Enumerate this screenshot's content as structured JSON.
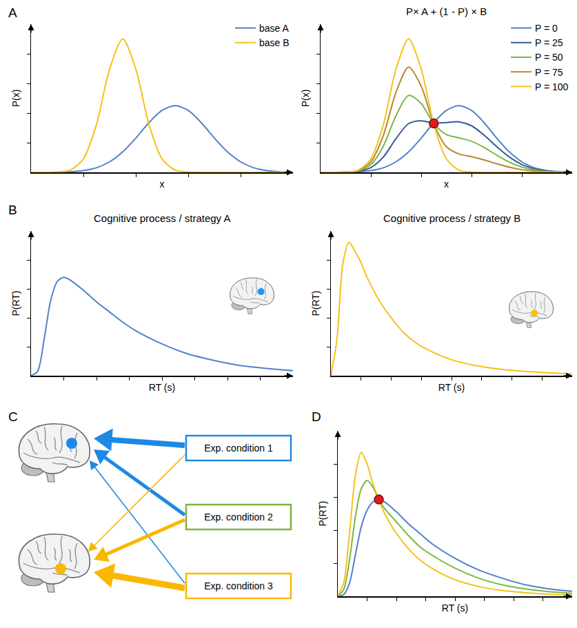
{
  "chart_data": [
    {
      "type": "line",
      "panel": "A",
      "x_label": "x",
      "y_label": "P(x)",
      "xlim": [
        0,
        10
      ],
      "ylim": [
        0,
        10
      ],
      "xticks": [
        2,
        4,
        6,
        8
      ],
      "yticks": [
        2,
        4,
        6,
        8
      ],
      "tick_labels": false,
      "grid": false,
      "legend": "top right",
      "x": [
        0,
        0.5,
        1,
        1.5,
        2,
        2.5,
        3,
        3.5,
        4,
        4.5,
        5,
        5.5,
        6,
        6.5,
        7,
        7.5,
        8,
        8.5,
        9,
        9.5,
        10
      ],
      "series": [
        {
          "name": "base A",
          "color": "#4f81c7",
          "values": [
            0,
            0,
            0.01,
            0.04,
            0.12,
            0.31,
            0.71,
            1.38,
            2.31,
            3.35,
            4.18,
            4.5,
            4.18,
            3.35,
            2.31,
            1.38,
            0.71,
            0.31,
            0.12,
            0.04,
            0.01
          ]
        },
        {
          "name": "base B",
          "color": "#f5c11a",
          "values": [
            0,
            0,
            0.02,
            0.15,
            0.91,
            3.24,
            6.97,
            9,
            6.97,
            3.24,
            0.91,
            0.15,
            0.02,
            0,
            0,
            0,
            0,
            0,
            0,
            0,
            0
          ]
        }
      ]
    },
    {
      "type": "line",
      "title": "P× A + (1 - P) × B",
      "x_label": "x",
      "y_label": "P(x)",
      "xlim": [
        0,
        10
      ],
      "ylim": [
        0,
        10
      ],
      "xticks": [
        2,
        4,
        6,
        8
      ],
      "yticks": [
        2,
        4,
        6,
        8
      ],
      "tick_labels": false,
      "grid": false,
      "legend": "top right",
      "x": [
        0,
        0.5,
        1,
        1.5,
        2,
        2.5,
        3,
        3.5,
        4,
        4.5,
        5,
        5.5,
        6,
        6.5,
        7,
        7.5,
        8,
        8.5,
        9,
        9.5,
        10
      ],
      "series": [
        {
          "name": "P = 0",
          "color": "#4f81c7",
          "values": [
            0,
            0,
            0.01,
            0.04,
            0.12,
            0.31,
            0.71,
            1.38,
            2.31,
            3.35,
            4.18,
            4.5,
            4.18,
            3.35,
            2.31,
            1.38,
            0.71,
            0.31,
            0.12,
            0.04,
            0.01
          ]
        },
        {
          "name": "P = 25",
          "color": "#34599e",
          "values": [
            0,
            0,
            0.01,
            0.07,
            0.32,
            1.04,
            2.28,
            3.29,
            3.48,
            3.32,
            3.36,
            3.41,
            3.14,
            2.51,
            1.73,
            1.04,
            0.53,
            0.23,
            0.09,
            0.03,
            0.01
          ]
        },
        {
          "name": "P = 50",
          "color": "#7bb841",
          "values": [
            0,
            0,
            0.02,
            0.1,
            0.52,
            1.78,
            3.84,
            5.19,
            4.64,
            3.3,
            2.55,
            2.33,
            2.1,
            1.68,
            1.16,
            0.69,
            0.36,
            0.16,
            0.06,
            0.02,
            0.01
          ]
        },
        {
          "name": "P = 75",
          "color": "#b8862b",
          "values": [
            0,
            0,
            0.02,
            0.12,
            0.71,
            2.51,
            5.41,
            7.1,
            5.81,
            3.27,
            1.73,
            1.24,
            1.06,
            0.84,
            0.58,
            0.35,
            0.18,
            0.08,
            0.03,
            0.01,
            0
          ]
        },
        {
          "name": "P = 100",
          "color": "#f5c11a",
          "values": [
            0,
            0,
            0.02,
            0.15,
            0.91,
            3.24,
            6.97,
            9,
            6.97,
            3.24,
            0.91,
            0.15,
            0.02,
            0,
            0,
            0,
            0,
            0,
            0,
            0,
            0
          ]
        }
      ],
      "point": {
        "x": 4.5,
        "y": 3.3,
        "color": "#e41a1c"
      }
    },
    {
      "type": "line",
      "panel": "B",
      "title": "Cognitive process / strategy A",
      "x_label": "RT (s)",
      "y_label": "P(RT)",
      "xlim": [
        0,
        10
      ],
      "ylim": [
        0,
        10
      ],
      "xticks": [
        1.25,
        2.5,
        3.75,
        5,
        6.25,
        7.5,
        8.75
      ],
      "yticks": [
        2,
        4,
        6,
        8
      ],
      "tick_labels": false,
      "grid": false,
      "x": [
        0,
        0.25,
        0.5,
        0.75,
        1,
        1.25,
        1.5,
        2,
        2.5,
        3,
        3.5,
        4,
        5,
        6,
        7,
        8,
        9,
        10
      ],
      "series": [
        {
          "color": "#4f81c7",
          "values": [
            0,
            0.3,
            2.5,
            5.2,
            6.5,
            6.8,
            6.6,
            5.9,
            5.1,
            4.4,
            3.7,
            3.1,
            2.2,
            1.5,
            1.05,
            0.7,
            0.5,
            0.35
          ]
        }
      ]
    },
    {
      "type": "line",
      "title": "Cognitive process / strategy B",
      "x_label": "RT (s)",
      "y_label": "P(RT)",
      "xlim": [
        0,
        10
      ],
      "ylim": [
        0,
        10
      ],
      "xticks": [
        1.25,
        2.5,
        3.75,
        5,
        6.25,
        7.5,
        8.75
      ],
      "yticks": [
        2,
        4,
        6,
        8
      ],
      "tick_labels": false,
      "grid": false,
      "x": [
        0,
        0.25,
        0.5,
        0.75,
        1,
        1.25,
        1.5,
        2,
        2.5,
        3,
        3.5,
        4,
        5,
        6,
        7,
        8,
        9,
        10
      ],
      "series": [
        {
          "color": "#f5c11a",
          "values": [
            0,
            2.5,
            7.8,
            9.2,
            8.6,
            7.8,
            6.8,
            5.2,
            4.0,
            3.0,
            2.3,
            1.8,
            1.1,
            0.7,
            0.45,
            0.3,
            0.2,
            0.12
          ]
        }
      ]
    },
    {
      "type": "line",
      "panel": "D",
      "x_label": "RT (s)",
      "y_label": "P(RT)",
      "xlim": [
        0,
        10
      ],
      "ylim": [
        0,
        10
      ],
      "xticks": [
        1.25,
        2.5,
        3.75,
        5,
        6.25,
        7.5,
        8.75
      ],
      "yticks": [
        2,
        4,
        6,
        8
      ],
      "tick_labels": false,
      "grid": false,
      "x": [
        0,
        0.25,
        0.5,
        0.75,
        1,
        1.25,
        1.5,
        1.75,
        2,
        2.5,
        3,
        3.5,
        4,
        5,
        6,
        7,
        8,
        9,
        10
      ],
      "series": [
        {
          "color": "#4f81c7",
          "values": [
            0,
            0.1,
            0.8,
            2.5,
            4.2,
            5.2,
            5.7,
            5.85,
            5.7,
            5.1,
            4.4,
            3.8,
            3.2,
            2.3,
            1.6,
            1.1,
            0.7,
            0.45,
            0.3
          ]
        },
        {
          "color": "#7bb841",
          "values": [
            0,
            0.4,
            2.2,
            4.8,
            6.5,
            7.0,
            6.6,
            5.85,
            5.3,
            4.5,
            3.7,
            3.0,
            2.5,
            1.7,
            1.1,
            0.7,
            0.45,
            0.28,
            0.18
          ]
        },
        {
          "color": "#f5c11a",
          "values": [
            0,
            0.8,
            3.8,
            7.3,
            8.7,
            8.0,
            6.8,
            5.85,
            5.0,
            3.8,
            2.9,
            2.2,
            1.7,
            1.0,
            0.6,
            0.35,
            0.22,
            0.13,
            0.08
          ]
        }
      ],
      "point": {
        "x": 1.75,
        "y": 5.85,
        "color": "#e41a1c"
      }
    }
  ],
  "diagram": {
    "panel": "C",
    "nodes": [
      {
        "label": "Exp. condition 1",
        "color": "#1e88e5"
      },
      {
        "label": "Exp. condition 2",
        "color": "#7cb342"
      },
      {
        "label": "Exp. condition 3",
        "color": "#f9b800"
      }
    ]
  }
}
